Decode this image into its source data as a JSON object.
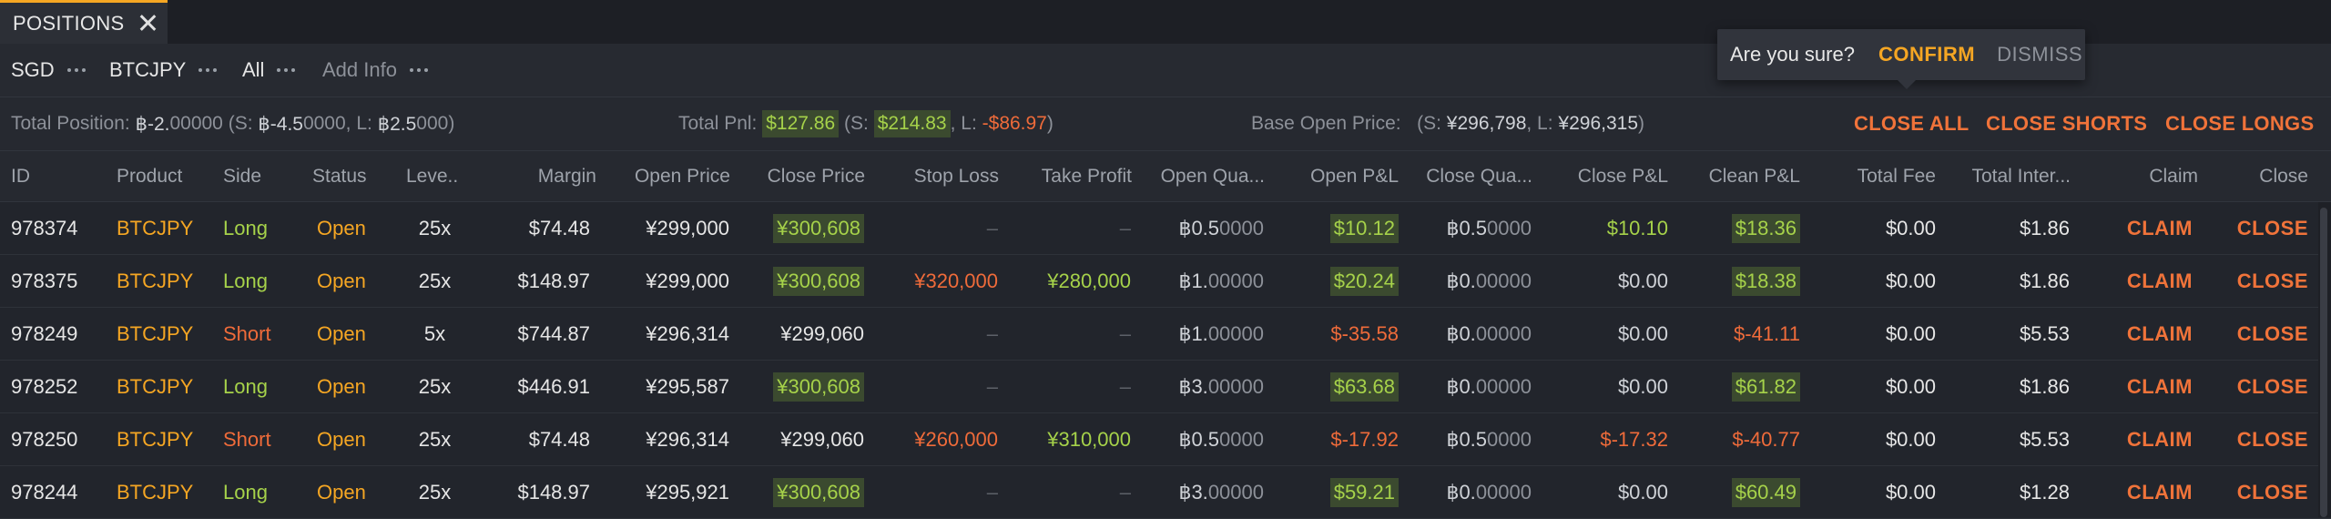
{
  "tab": {
    "title": "POSITIONS"
  },
  "filters": [
    {
      "label": "SGD",
      "muted": false
    },
    {
      "label": "BTCJPY",
      "muted": false
    },
    {
      "label": "All",
      "muted": false
    },
    {
      "label": "Add Info",
      "muted": true
    }
  ],
  "summary": {
    "total_position": {
      "label": "Total Position:",
      "value_main": "฿-2.",
      "value_tail": "00000",
      "s_label": "(S:",
      "s_main": "฿-4.5",
      "s_tail": "0000",
      "l_label": ", L:",
      "l_main": "฿2.5",
      "l_tail": "000",
      "close": ")"
    },
    "total_pnl": {
      "label": "Total Pnl:",
      "value": "$127.86",
      "s_label": "(S:",
      "s_value": "$214.83",
      "l_label": ", L:",
      "l_value": "-$86.97",
      "close": ")"
    },
    "base_open_price": {
      "label": "Base Open Price:",
      "s_label": "(S:",
      "s_value": "¥296,798",
      "l_label": ", L:",
      "l_value": "¥296,315",
      "close": ")"
    },
    "close_all": "CLOSE ALL",
    "close_shorts": "CLOSE SHORTS",
    "close_longs": "CLOSE LONGS"
  },
  "popover": {
    "question": "Are you sure?",
    "confirm": "CONFIRM",
    "dismiss": "DISMISS"
  },
  "columns": [
    "ID",
    "Product",
    "Side",
    "Status",
    "Leve..",
    "Margin",
    "Open Price",
    "Close Price",
    "Stop Loss",
    "Take Profit",
    "Open Qua...",
    "Open P&L",
    "Close Qua...",
    "Close P&L",
    "Clean P&L",
    "Total Fee",
    "Total Inter...",
    "Claim",
    "Close"
  ],
  "rows": [
    {
      "id": "978374",
      "product": "BTCJPY",
      "side": "Long",
      "status": "Open",
      "leverage": "25x",
      "margin": "$74.48",
      "open_price": "¥299,000",
      "close_price": "¥300,608",
      "stop_loss": "–",
      "take_profit": "–",
      "open_qty_main": "฿0.5",
      "open_qty_tail": "0000",
      "open_pnl": "$10.12",
      "close_qty_main": "฿0.5",
      "close_qty_tail": "0000",
      "close_pnl": "$10.10",
      "clean_pnl": "$18.36",
      "total_fee": "$0.00",
      "total_interest": "$1.86",
      "claim": "CLAIM",
      "close": "CLOSE"
    },
    {
      "id": "978375",
      "product": "BTCJPY",
      "side": "Long",
      "status": "Open",
      "leverage": "25x",
      "margin": "$148.97",
      "open_price": "¥299,000",
      "close_price": "¥300,608",
      "stop_loss": "¥320,000",
      "take_profit": "¥280,000",
      "open_qty_main": "฿1.",
      "open_qty_tail": "00000",
      "open_pnl": "$20.24",
      "close_qty_main": "฿0.",
      "close_qty_tail": "00000",
      "close_pnl": "$0.00",
      "clean_pnl": "$18.38",
      "total_fee": "$0.00",
      "total_interest": "$1.86",
      "claim": "CLAIM",
      "close": "CLOSE"
    },
    {
      "id": "978249",
      "product": "BTCJPY",
      "side": "Short",
      "status": "Open",
      "leverage": "5x",
      "margin": "$744.87",
      "open_price": "¥296,314",
      "close_price": "¥299,060",
      "stop_loss": "–",
      "take_profit": "–",
      "open_qty_main": "฿1.",
      "open_qty_tail": "00000",
      "open_pnl": "$-35.58",
      "close_qty_main": "฿0.",
      "close_qty_tail": "00000",
      "close_pnl": "$0.00",
      "clean_pnl": "$-41.11",
      "total_fee": "$0.00",
      "total_interest": "$5.53",
      "claim": "CLAIM",
      "close": "CLOSE"
    },
    {
      "id": "978252",
      "product": "BTCJPY",
      "side": "Long",
      "status": "Open",
      "leverage": "25x",
      "margin": "$446.91",
      "open_price": "¥295,587",
      "close_price": "¥300,608",
      "stop_loss": "–",
      "take_profit": "–",
      "open_qty_main": "฿3.",
      "open_qty_tail": "00000",
      "open_pnl": "$63.68",
      "close_qty_main": "฿0.",
      "close_qty_tail": "00000",
      "close_pnl": "$0.00",
      "clean_pnl": "$61.82",
      "total_fee": "$0.00",
      "total_interest": "$1.86",
      "claim": "CLAIM",
      "close": "CLOSE"
    },
    {
      "id": "978250",
      "product": "BTCJPY",
      "side": "Short",
      "status": "Open",
      "leverage": "25x",
      "margin": "$74.48",
      "open_price": "¥296,314",
      "close_price": "¥299,060",
      "stop_loss": "¥260,000",
      "take_profit": "¥310,000",
      "open_qty_main": "฿0.5",
      "open_qty_tail": "0000",
      "open_pnl": "$-17.92",
      "close_qty_main": "฿0.5",
      "close_qty_tail": "0000",
      "close_pnl": "$-17.32",
      "clean_pnl": "$-40.77",
      "total_fee": "$0.00",
      "total_interest": "$5.53",
      "claim": "CLAIM",
      "close": "CLOSE"
    },
    {
      "id": "978244",
      "product": "BTCJPY",
      "side": "Long",
      "status": "Open",
      "leverage": "25x",
      "margin": "$148.97",
      "open_price": "¥295,921",
      "close_price": "¥300,608",
      "stop_loss": "–",
      "take_profit": "–",
      "open_qty_main": "฿3.",
      "open_qty_tail": "00000",
      "open_pnl": "$59.21",
      "close_qty_main": "฿0.",
      "close_qty_tail": "00000",
      "close_pnl": "$0.00",
      "clean_pnl": "$60.49",
      "total_fee": "$0.00",
      "total_interest": "$1.28",
      "claim": "CLAIM",
      "close": "CLOSE"
    }
  ],
  "colors": {
    "accent": "#f5a623",
    "action": "#f0733a",
    "positive": "#a6d24a",
    "negative": "#ef6b3a",
    "highlight": "#3b4a2f"
  }
}
